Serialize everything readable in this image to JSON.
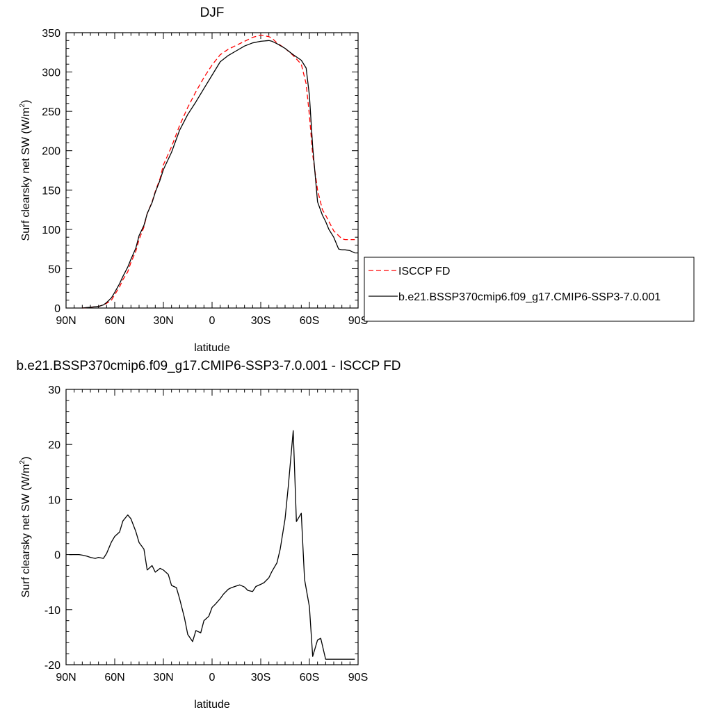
{
  "chart_data": [
    {
      "type": "line",
      "title": "DJF",
      "xlabel": "latitude",
      "ylabel": "Surf clearsky net SW (W/m",
      "ylabel_sup": "2",
      "ylabel_close": ")",
      "xlim": [
        90,
        -90
      ],
      "ylim": [
        0,
        350
      ],
      "xticks": [
        90,
        60,
        30,
        0,
        -30,
        -60,
        -90
      ],
      "xtick_labels": [
        "90N",
        "60N",
        "30N",
        "0",
        "30S",
        "60S",
        "90S"
      ],
      "yticks": [
        0,
        50,
        100,
        150,
        200,
        250,
        300,
        350
      ],
      "ytick_labels": [
        "0",
        "50",
        "100",
        "150",
        "200",
        "250",
        "300",
        "350"
      ],
      "legend": "right",
      "series": [
        {
          "name": "ISCCP FD",
          "color": "#ff0000",
          "dash": "dashed",
          "x": [
            80,
            75,
            70,
            67,
            65,
            62,
            60,
            57,
            55,
            52,
            50,
            47,
            45,
            42,
            40,
            37,
            35,
            32,
            30,
            25,
            20,
            15,
            10,
            5,
            0,
            -5,
            -10,
            -15,
            -20,
            -25,
            -30,
            -35,
            -37,
            -40,
            -45,
            -50,
            -55,
            -58,
            -60,
            -62,
            -65,
            -68,
            -70,
            -72,
            -75,
            -78,
            -80,
            -82,
            -85,
            -88
          ],
          "y": [
            0,
            1,
            2,
            4,
            6,
            10,
            17,
            27,
            36,
            46,
            58,
            72,
            87,
            103,
            120,
            135,
            148,
            165,
            182,
            205,
            232,
            255,
            275,
            293,
            309,
            322,
            329,
            334,
            339,
            344,
            347,
            345,
            343,
            337,
            330,
            321,
            310,
            285,
            245,
            195,
            150,
            125,
            118,
            110,
            98,
            92,
            88,
            87,
            87,
            87
          ]
        },
        {
          "name": "b.e21.BSSP370cmip6.f09_g17.CMIP6-SSP3-7.0.001",
          "color": "#000000",
          "dash": "solid",
          "x": [
            80,
            75,
            70,
            67,
            65,
            62,
            60,
            57,
            55,
            52,
            50,
            47,
            45,
            42,
            40,
            37,
            35,
            32,
            30,
            25,
            20,
            15,
            10,
            5,
            0,
            -5,
            -10,
            -15,
            -20,
            -25,
            -30,
            -35,
            -37,
            -40,
            -45,
            -50,
            -55,
            -58,
            -60,
            -62,
            -65,
            -68,
            -70,
            -72,
            -75,
            -78,
            -80,
            -82,
            -85,
            -88
          ],
          "y": [
            0,
            1,
            2,
            4,
            7,
            13,
            20,
            31,
            40,
            52,
            62,
            76,
            92,
            105,
            120,
            134,
            147,
            163,
            176,
            198,
            226,
            246,
            262,
            279,
            296,
            313,
            321,
            327,
            333,
            337,
            339,
            340,
            339,
            336,
            330,
            322,
            315,
            305,
            270,
            205,
            135,
            118,
            110,
            100,
            90,
            75,
            74,
            74,
            73,
            70
          ]
        }
      ]
    },
    {
      "type": "line",
      "title": "b.e21.BSSP370cmip6.f09_g17.CMIP6-SSP3-7.0.001 - ISCCP FD",
      "xlabel": "latitude",
      "ylabel": "Surf clearsky net SW (W/m",
      "ylabel_sup": "2",
      "ylabel_close": ")",
      "xlim": [
        90,
        -90
      ],
      "ylim": [
        -20,
        30
      ],
      "xticks": [
        90,
        60,
        30,
        0,
        -30,
        -60,
        -90
      ],
      "xtick_labels": [
        "90N",
        "60N",
        "30N",
        "0",
        "30S",
        "60S",
        "90S"
      ],
      "yticks": [
        -20,
        -10,
        0,
        10,
        20,
        30
      ],
      "ytick_labels": [
        "-20",
        "-10",
        "0",
        "10",
        "20",
        "30"
      ],
      "series": [
        {
          "color": "#000000",
          "dash": "solid",
          "x": [
            88,
            85,
            82,
            80,
            77,
            75,
            72,
            70,
            67,
            65,
            62,
            60,
            57,
            55,
            52,
            50,
            47,
            45,
            42,
            40,
            37,
            35,
            32,
            30,
            27,
            25,
            22,
            20,
            17,
            15,
            12,
            10,
            7,
            5,
            2,
            0,
            -2,
            -5,
            -7,
            -10,
            -12,
            -15,
            -17,
            -20,
            -22,
            -25,
            -27,
            -30,
            -32,
            -35,
            -37,
            -40,
            -42,
            -45,
            -47,
            -50,
            -52,
            -55,
            -57,
            -60,
            -62,
            -65,
            -67,
            -70,
            -72,
            -75,
            -77,
            -80,
            -82,
            -85,
            -88
          ],
          "y": [
            0,
            0,
            0,
            -0.1,
            -0.3,
            -0.5,
            -0.7,
            -0.5,
            -0.7,
            0.2,
            2.3,
            3.3,
            4.1,
            6.1,
            7.2,
            6.5,
            4.2,
            2.2,
            1.0,
            -2.8,
            -2.0,
            -3.2,
            -2.5,
            -2.8,
            -3.6,
            -5.6,
            -6.0,
            -8.0,
            -11.5,
            -14.5,
            -15.8,
            -13.8,
            -14.2,
            -12.0,
            -11.2,
            -9.6,
            -9.0,
            -8.0,
            -7.2,
            -6.3,
            -6.0,
            -5.7,
            -5.5,
            -5.9,
            -6.5,
            -6.7,
            -5.8,
            -5.4,
            -5.1,
            -4.2,
            -3.0,
            -1.5,
            1.0,
            6.5,
            12.5,
            22.5,
            6.0,
            7.5,
            -4.5,
            -9.5,
            -18.5,
            -15.5,
            -15.2,
            -19.0,
            -19.0,
            -19.0,
            -19.0,
            -19.0,
            -19.0,
            -19.0,
            -19.0
          ]
        }
      ]
    }
  ]
}
